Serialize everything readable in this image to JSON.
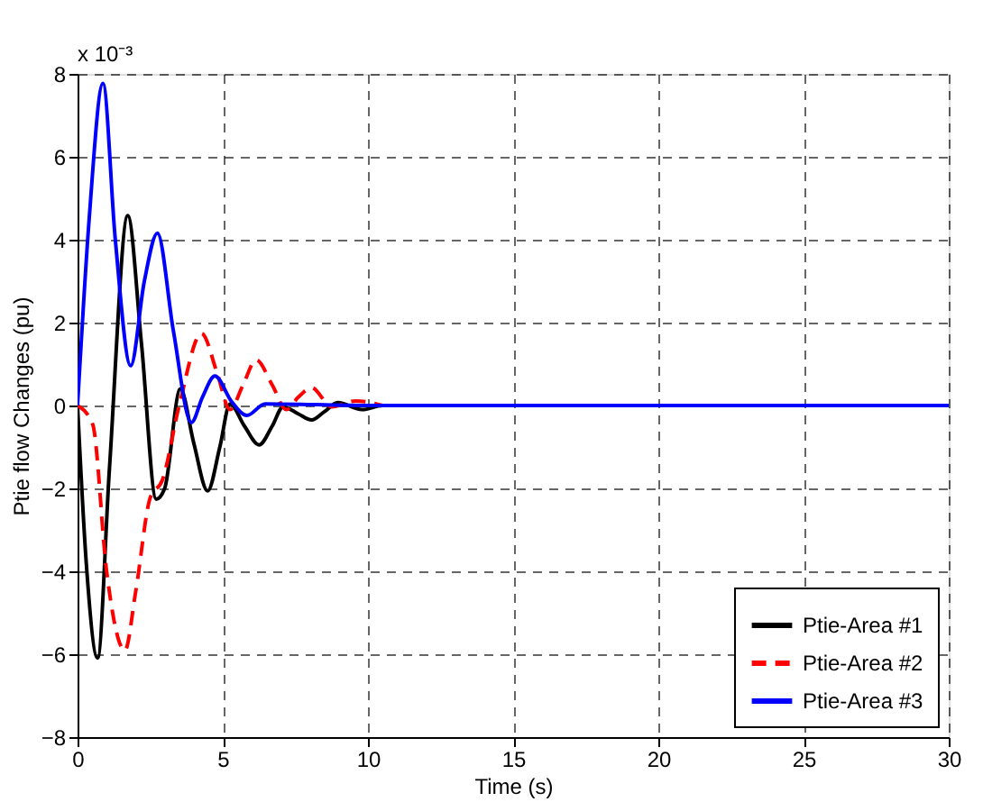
{
  "chart_data": {
    "type": "line",
    "xlabel": "Time (s)",
    "ylabel": "Ptie flow Changes (pu)",
    "annotations": [
      "x 10⁻³"
    ],
    "xlim": [
      0,
      30
    ],
    "xticks": [
      0,
      5,
      10,
      15,
      20,
      25,
      30
    ],
    "ylim": [
      -8,
      8
    ],
    "yticks": [
      -8,
      -6,
      -4,
      -2,
      0,
      2,
      4,
      6,
      8
    ],
    "grid": true,
    "legend": "bottom right",
    "series": [
      {
        "name": "Ptie-Area #1",
        "color": "#000000",
        "line_style": "solid",
        "x": [
          0,
          0.3,
          0.69,
          1.1,
          1.73,
          2.2,
          2.71,
          3.0,
          3.54,
          4.0,
          4.48,
          4.9,
          5.25,
          5.75,
          6.25,
          6.7,
          7.08,
          7.6,
          8.06,
          8.5,
          8.96,
          9.8,
          10.5,
          15,
          20,
          25,
          30
        ],
        "values": [
          0,
          -3.8,
          -6.09,
          -1.5,
          4.58,
          1.5,
          -2.26,
          -2.0,
          0.4,
          -0.9,
          -2.06,
          -1.0,
          0.04,
          -0.5,
          -0.95,
          -0.5,
          -0.03,
          -0.2,
          -0.35,
          -0.15,
          0.07,
          -0.1,
          0,
          0,
          0,
          0,
          0
        ]
      },
      {
        "name": "Ptie-Area #2",
        "color": "#ff0000",
        "line_style": "dashed",
        "x": [
          0,
          0.52,
          1.0,
          1.63,
          2.0,
          2.5,
          2.92,
          3.5,
          4.27,
          4.8,
          5.25,
          5.7,
          6.15,
          6.7,
          7.19,
          7.6,
          8.06,
          8.75,
          9.58,
          10.5
        ],
        "values": [
          0,
          -0.45,
          -4.0,
          -5.91,
          -4.5,
          -2.23,
          -1.8,
          0.0,
          1.74,
          0.8,
          -0.1,
          0.5,
          1.1,
          0.5,
          -0.1,
          0.2,
          0.43,
          -0.03,
          0.11,
          0
        ]
      },
      {
        "name": "Ptie-Area #3",
        "color": "#0000ff",
        "line_style": "solid",
        "x": [
          0,
          0.4,
          0.875,
          1.3,
          1.83,
          2.3,
          2.75,
          3.3,
          3.92,
          4.3,
          4.73,
          5.3,
          5.83,
          6.46,
          10,
          15,
          20,
          25,
          30
        ],
        "values": [
          0,
          4.5,
          7.77,
          4.0,
          0.96,
          3.0,
          4.16,
          1.8,
          -0.41,
          0.2,
          0.71,
          0.1,
          -0.24,
          0.04,
          0,
          0,
          0,
          0,
          0
        ]
      }
    ]
  }
}
